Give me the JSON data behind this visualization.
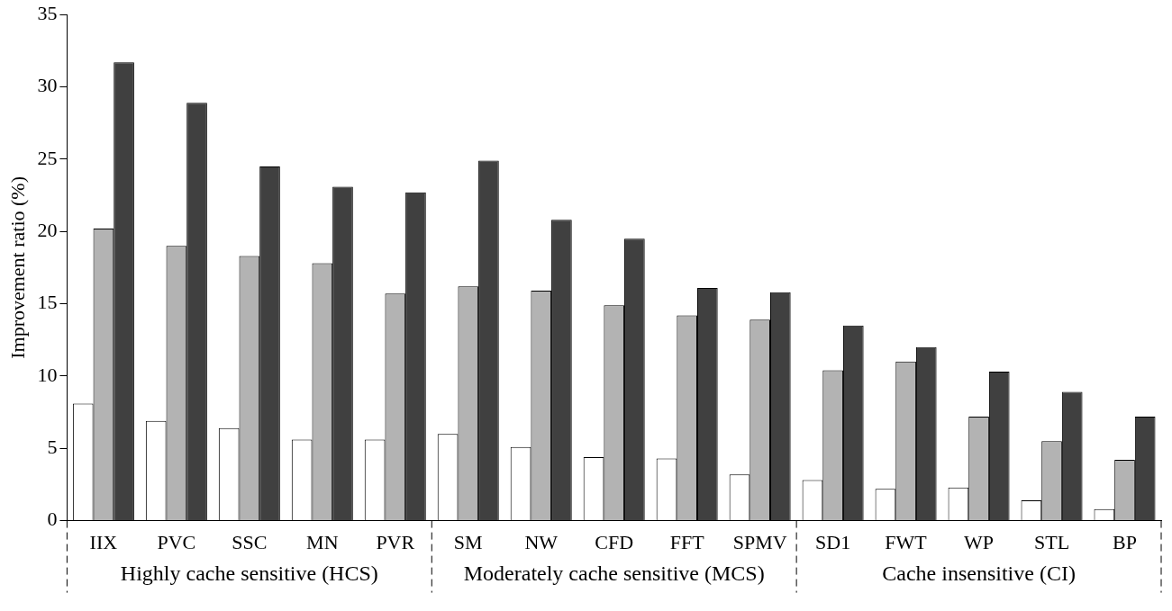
{
  "chart_data": {
    "type": "bar",
    "ylabel": "Improvement ratio (%)",
    "categories": [
      "IIX",
      "PVC",
      "SSC",
      "MN",
      "PVR",
      "SM",
      "NW",
      "CFD",
      "FFT",
      "SPMV",
      "SD1",
      "FWT",
      "WP",
      "STL",
      "BP"
    ],
    "series": [
      {
        "color": "#ffffff",
        "values": [
          8.1,
          6.9,
          6.4,
          5.6,
          5.6,
          6.0,
          5.1,
          4.4,
          4.3,
          3.2,
          2.8,
          2.2,
          2.3,
          1.4,
          0.8
        ]
      },
      {
        "color": "#b3b3b3",
        "values": [
          20.2,
          19.0,
          18.3,
          17.8,
          15.7,
          16.2,
          15.9,
          14.9,
          14.2,
          13.9,
          10.4,
          11.0,
          7.2,
          5.5,
          4.2
        ]
      },
      {
        "color": "#404040",
        "values": [
          31.7,
          28.9,
          24.5,
          23.1,
          22.7,
          24.9,
          20.8,
          19.5,
          16.1,
          15.8,
          13.5,
          12.0,
          10.3,
          8.9,
          7.2
        ]
      }
    ],
    "ylim": [
      0,
      35
    ],
    "yticks": [
      0,
      5,
      10,
      15,
      20,
      25,
      30,
      35
    ],
    "grid": false,
    "legend": false,
    "annotations": [
      "Highly cache sensitive (HCS)",
      "Moderately cache sensitive (MCS)",
      "Cache insensitive (CI)"
    ]
  }
}
